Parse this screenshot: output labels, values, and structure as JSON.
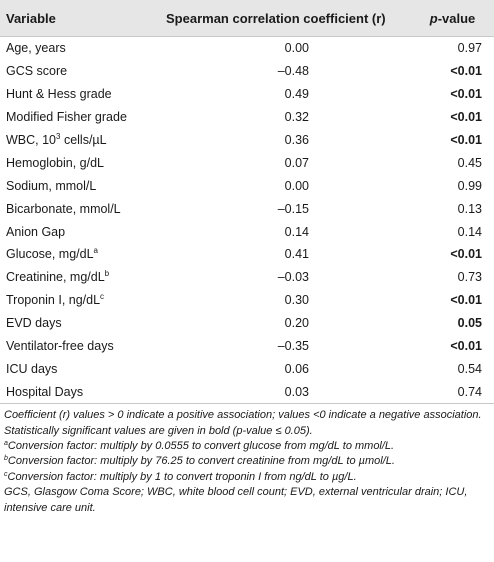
{
  "table": {
    "headers": {
      "variable": "Variable",
      "coef": "Spearman correlation coefficient (r)",
      "p_prefix": "p",
      "p_suffix": "-value"
    },
    "rows": [
      {
        "variable": "Age, years",
        "sup": "",
        "coef": "0.00",
        "p": "0.97",
        "bold": false
      },
      {
        "variable": "GCS score",
        "sup": "",
        "coef": "–0.48",
        "p": "<0.01",
        "bold": true
      },
      {
        "variable": "Hunt & Hess grade",
        "sup": "",
        "coef": "0.49",
        "p": "<0.01",
        "bold": true
      },
      {
        "variable": "Modified Fisher grade",
        "sup": "",
        "coef": "0.32",
        "p": "<0.01",
        "bold": true
      },
      {
        "variable": "WBC, 10",
        "sup": "3",
        "after": " cells/µL",
        "coef": "0.36",
        "p": "<0.01",
        "bold": true
      },
      {
        "variable": "Hemoglobin, g/dL",
        "sup": "",
        "coef": "0.07",
        "p": "0.45",
        "bold": false
      },
      {
        "variable": "Sodium, mmol/L",
        "sup": "",
        "coef": "0.00",
        "p": "0.99",
        "bold": false
      },
      {
        "variable": "Bicarbonate, mmol/L",
        "sup": "",
        "coef": "–0.15",
        "p": "0.13",
        "bold": false
      },
      {
        "variable": "Anion Gap",
        "sup": "",
        "coef": "0.14",
        "p": "0.14",
        "bold": false
      },
      {
        "variable": "Glucose, mg/dL",
        "sup": "a",
        "coef": "0.41",
        "p": "<0.01",
        "bold": true
      },
      {
        "variable": "Creatinine, mg/dL",
        "sup": "b",
        "coef": "–0.03",
        "p": "0.73",
        "bold": false
      },
      {
        "variable": "Troponin I, ng/dL",
        "sup": "c",
        "coef": "0.30",
        "p": "<0.01",
        "bold": true
      },
      {
        "variable": "EVD days",
        "sup": "",
        "coef": "0.20",
        "p": "0.05",
        "bold": true
      },
      {
        "variable": "Ventilator-free days",
        "sup": "",
        "coef": "–0.35",
        "p": "<0.01",
        "bold": true
      },
      {
        "variable": "ICU days",
        "sup": "",
        "coef": "0.06",
        "p": "0.54",
        "bold": false
      },
      {
        "variable": "Hospital Days",
        "sup": "",
        "coef": "0.03",
        "p": "0.74",
        "bold": false
      }
    ]
  },
  "notes": {
    "main": "Coefficient (r) values > 0 indicate a positive association; values <0 indicate a negative association. Statistically significant values are given in bold (p-value ≤ 0.05).",
    "a_mark": "a",
    "a_text": "Conversion factor: multiply by 0.0555 to convert glucose from mg/dL to mmol/L.",
    "b_mark": "b",
    "b_text": "Conversion factor: multiply by 76.25 to convert creatinine from mg/dL to µmol/L.",
    "c_mark": "c",
    "c_text": "Conversion factor: multiply by 1 to convert troponin I from ng/dL to µg/L.",
    "abbrev": "GCS, Glasgow Coma Score; WBC, white blood cell count; EVD, external ventricular drain; ICU, intensive care unit."
  },
  "colors": {
    "header_bg": "#e6e6e6"
  }
}
